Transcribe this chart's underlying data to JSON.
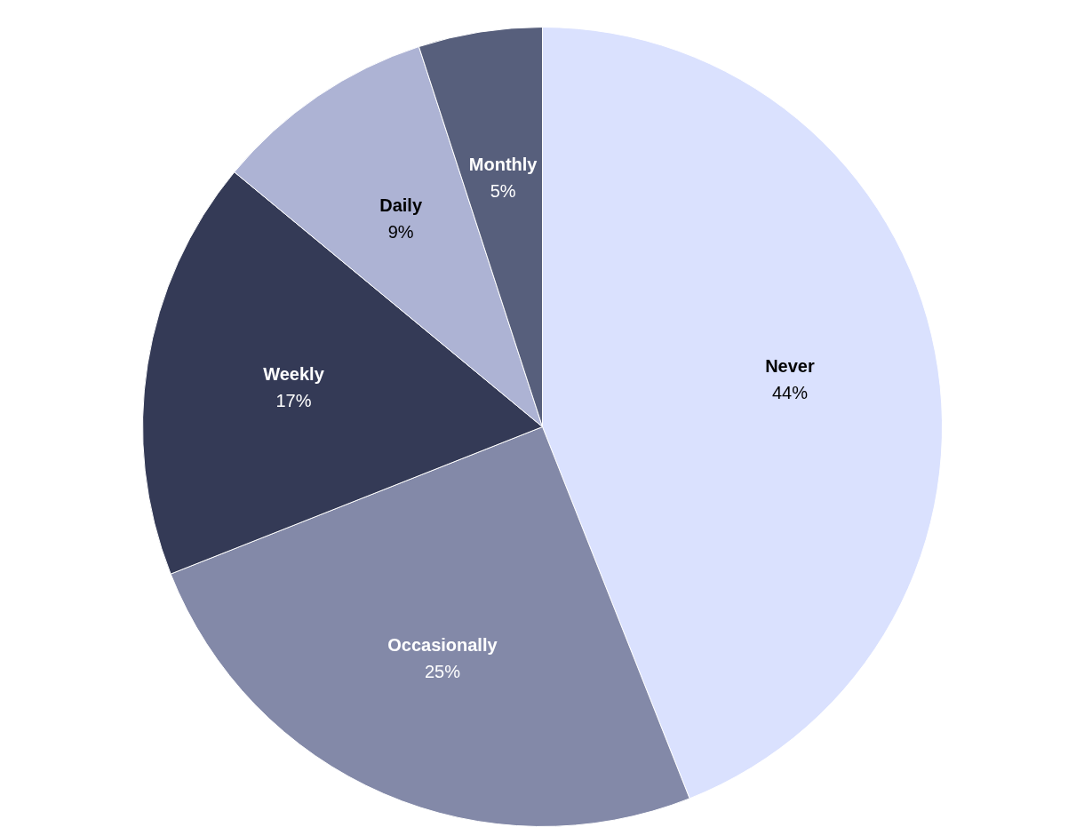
{
  "chart_data": {
    "type": "pie",
    "categories": [
      "Never",
      "Occasionally",
      "Weekly",
      "Daily",
      "Monthly"
    ],
    "values": [
      44,
      25,
      17,
      9,
      5
    ],
    "colors": [
      "#dae1fe",
      "#8389a8",
      "#343a56",
      "#adb3d4",
      "#575f7c"
    ],
    "value_labels": [
      "44%",
      "25%",
      "17%",
      "9%",
      "5%"
    ]
  }
}
